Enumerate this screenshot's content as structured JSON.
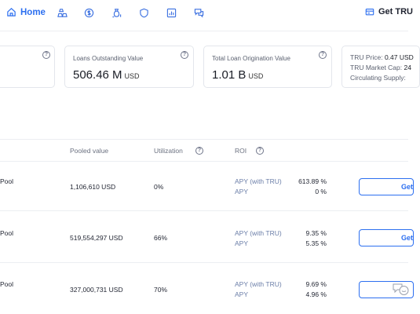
{
  "nav": {
    "home_label": "Home",
    "icons": [
      "ingot-icon",
      "dollar-coin-icon",
      "money-bag-icon",
      "shield-icon",
      "bar-chart-icon",
      "chat-bubbles-icon"
    ],
    "get_tru_label": "Get TRU",
    "accent": "#2c6ff0"
  },
  "stats": {
    "loans_outstanding": {
      "label": "Loans Outstanding Value",
      "value": "506.46 M",
      "unit": "USD"
    },
    "total_origination": {
      "label": "Total Loan Origination Value",
      "value": "1.01 B",
      "unit": "USD"
    },
    "tru": {
      "price_label": "TRU Price:",
      "price_value": "0.47 USD",
      "market_cap_label": "TRU Market Cap:",
      "market_cap_value": "24",
      "supply_label": "Circulating Supply:"
    }
  },
  "table": {
    "headers": {
      "pooled": "Pooled value",
      "utilization": "Utilization",
      "roi": "ROI"
    },
    "rows": [
      {
        "name": "Pool",
        "pooled": "1,106,610 USD",
        "utilization": "0%",
        "apy_tru_label": "APY (with TRU)",
        "apy_tru": "613.89 %",
        "apy_label": "APY",
        "apy": "0 %",
        "action": "Get"
      },
      {
        "name": "Pool",
        "pooled": "519,554,297 USD",
        "utilization": "66%",
        "apy_tru_label": "APY (with TRU)",
        "apy_tru": "9.35 %",
        "apy_label": "APY",
        "apy": "5.35 %",
        "action": "Get"
      },
      {
        "name": "Pool",
        "pooled": "327,000,731 USD",
        "utilization": "70%",
        "apy_tru_label": "APY (with TRU)",
        "apy_tru": "9.69 %",
        "apy_label": "APY",
        "apy": "4.96 %",
        "action": ""
      }
    ]
  }
}
